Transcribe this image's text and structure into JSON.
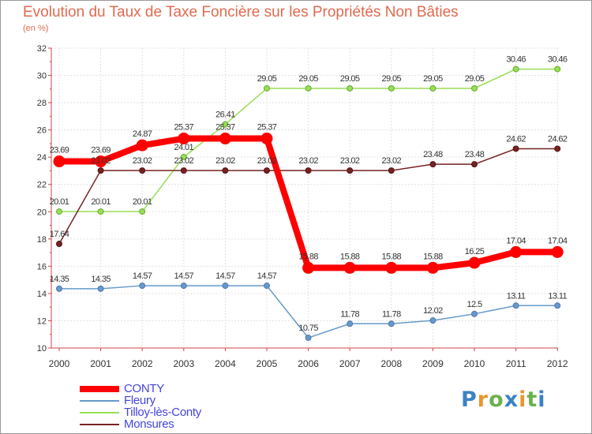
{
  "chart_data": {
    "type": "line",
    "title": "Evolution du Taux de Taxe Foncière sur les Propriétés Non Bâties",
    "subtitle": "(en %)",
    "xlabel": "",
    "ylabel": "",
    "categories": [
      "2000",
      "2001",
      "2002",
      "2003",
      "2004",
      "2005",
      "2006",
      "2007",
      "2008",
      "2009",
      "2010",
      "2011",
      "2012"
    ],
    "ylim": [
      10,
      32
    ],
    "yticks": [
      "10",
      "12",
      "14",
      "16",
      "18",
      "20",
      "22",
      "24",
      "26",
      "28",
      "30",
      "32"
    ],
    "grid": true,
    "legend_position": "bottom-left",
    "series": [
      {
        "name": "CONTY",
        "color": "#ff0000",
        "values": [
          23.69,
          23.69,
          24.87,
          25.37,
          25.37,
          25.37,
          15.88,
          15.88,
          15.88,
          15.88,
          16.25,
          17.04,
          17.04
        ],
        "labels": [
          "23.69",
          "23.69",
          "24.87",
          "25.37",
          "25.37",
          "25.37",
          "15.88",
          "15.88",
          "15.88",
          "15.88",
          "16.25",
          "17.04",
          "17.04"
        ]
      },
      {
        "name": "Fleury",
        "color": "#6699cc",
        "values": [
          14.35,
          14.35,
          14.57,
          14.57,
          14.57,
          14.57,
          10.75,
          11.78,
          11.78,
          12.02,
          12.5,
          13.11,
          13.11
        ],
        "labels": [
          "14.35",
          "14.35",
          "14.57",
          "14.57",
          "14.57",
          "14.57",
          "10.75",
          "11.78",
          "11.78",
          "12.02",
          "12.5",
          "13.11",
          "13.11"
        ]
      },
      {
        "name": "Tilloy-lès-Conty",
        "color": "#99dd55",
        "values": [
          20.01,
          20.01,
          20.01,
          24.01,
          26.41,
          29.05,
          29.05,
          29.05,
          29.05,
          29.05,
          29.05,
          30.46,
          30.46
        ],
        "labels": [
          "20.01",
          "20.01",
          "20.01",
          "24.01",
          "26.41",
          "29.05",
          "29.05",
          "29.05",
          "29.05",
          "29.05",
          "29.05",
          "30.46",
          "30.46"
        ]
      },
      {
        "name": "Monsures",
        "color": "#772222",
        "values": [
          17.64,
          23.02,
          23.02,
          23.02,
          23.02,
          23.02,
          23.02,
          23.02,
          23.02,
          23.48,
          23.48,
          24.62,
          24.62
        ],
        "labels": [
          "17.64",
          "23.02",
          "23.02",
          "23.02",
          "23.02",
          "23.02",
          "23.02",
          "23.02",
          "23.02",
          "23.48",
          "23.48",
          "24.62",
          "24.62"
        ]
      }
    ]
  },
  "logo": {
    "text": "Proxiti",
    "letters": [
      "P",
      "r",
      "o",
      "x",
      "i",
      "t",
      "i"
    ],
    "colors": [
      "#3b82c4",
      "#e8962e",
      "#6ab04c",
      "#3b82c4",
      "#e8962e",
      "#6ab04c",
      "#3b82c4"
    ]
  }
}
